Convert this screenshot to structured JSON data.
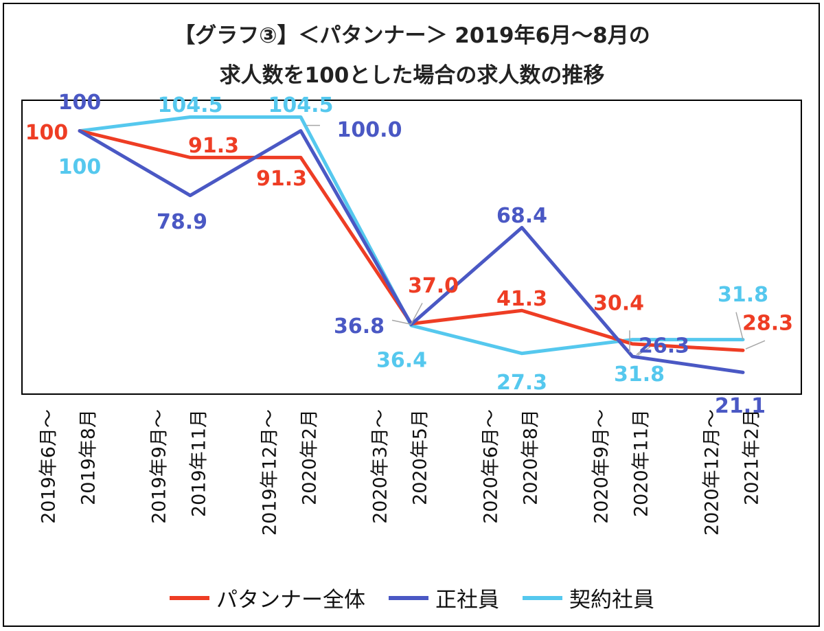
{
  "title": {
    "line1": "【グラフ③】＜パタンナー＞ 2019年6月～8月の",
    "line2": "求人数を100とした場合の求人数の推移"
  },
  "chart_data": {
    "type": "line",
    "categories": [
      [
        "2019年6月～",
        "2019年8月"
      ],
      [
        "2019年9月～",
        "2019年11月"
      ],
      [
        "2019年12月～",
        "2020年2月"
      ],
      [
        "2020年3月～",
        "2020年5月"
      ],
      [
        "2020年6月～",
        "2020年8月"
      ],
      [
        "2020年9月～",
        "2020年11月"
      ],
      [
        "2020年12月～",
        "2021年2月"
      ]
    ],
    "ylim": [
      14,
      110
    ],
    "grid": false,
    "legend_position": "bottom",
    "series": [
      {
        "name": "パタンナー全体",
        "color": "#ee3d24",
        "values": [
          100,
          91.3,
          91.3,
          37.0,
          41.3,
          30.4,
          28.3
        ],
        "labels": [
          "100",
          "91.3",
          "91.3",
          "37.0",
          "41.3",
          "30.4",
          "28.3"
        ]
      },
      {
        "name": "正社員",
        "color": "#4a58c4",
        "values": [
          100,
          78.9,
          100.0,
          36.8,
          68.4,
          26.3,
          21.1
        ],
        "labels": [
          "100",
          "78.9",
          "100.0",
          "36.8",
          "68.4",
          "26.3",
          "21.1"
        ]
      },
      {
        "name": "契約社員",
        "color": "#55c8ee",
        "values": [
          100,
          104.5,
          104.5,
          36.4,
          27.3,
          31.8,
          31.8
        ],
        "labels": [
          "100",
          "104.5",
          "104.5",
          "36.4",
          "27.3",
          "31.8",
          "31.8"
        ]
      }
    ]
  }
}
